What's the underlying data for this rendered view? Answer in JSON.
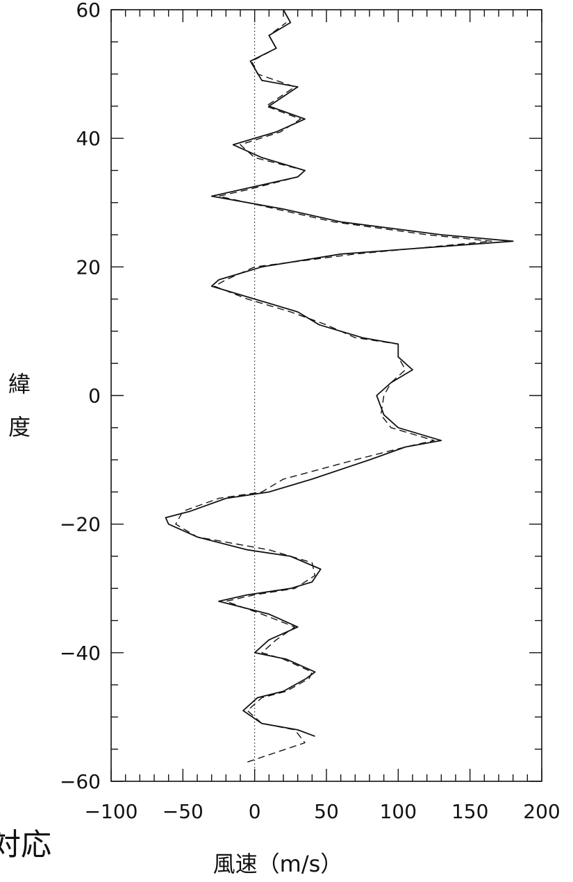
{
  "chart_data": {
    "type": "line",
    "xlabel": "風速（m/s）",
    "ylabel": "緯度",
    "xlim": [
      -100,
      200
    ],
    "ylim": [
      -60,
      60
    ],
    "xticks": [
      -100,
      -50,
      0,
      50,
      100,
      150,
      200
    ],
    "yticks": [
      -60,
      -40,
      -20,
      0,
      20,
      40,
      60
    ],
    "tick_labels_x": [
      "−100",
      "−50",
      "0",
      "50",
      "100",
      "150",
      "200"
    ],
    "tick_labels_y": [
      "−60",
      "−40",
      "−20",
      "0",
      "20",
      "40",
      "60"
    ],
    "zero_reference_line": true,
    "grid": false,
    "series": [
      {
        "style": "solid",
        "points": [
          [
            42,
            -53
          ],
          [
            30,
            -52
          ],
          [
            5,
            -51
          ],
          [
            -8,
            -49
          ],
          [
            2,
            -47
          ],
          [
            20,
            -46
          ],
          [
            36,
            -44
          ],
          [
            42,
            -43
          ],
          [
            22,
            -41
          ],
          [
            0,
            -40
          ],
          [
            10,
            -38
          ],
          [
            30,
            -36
          ],
          [
            10,
            -34
          ],
          [
            -25,
            -32
          ],
          [
            -5,
            -31
          ],
          [
            25,
            -30
          ],
          [
            40,
            -29
          ],
          [
            46,
            -27
          ],
          [
            25,
            -25
          ],
          [
            -5,
            -24
          ],
          [
            -40,
            -22
          ],
          [
            -60,
            -20
          ],
          [
            -62,
            -19
          ],
          [
            -45,
            -18
          ],
          [
            -20,
            -16
          ],
          [
            10,
            -15
          ],
          [
            40,
            -13
          ],
          [
            80,
            -10
          ],
          [
            105,
            -8
          ],
          [
            130,
            -7
          ],
          [
            100,
            -5
          ],
          [
            90,
            -3
          ],
          [
            85,
            0
          ],
          [
            95,
            2
          ],
          [
            110,
            4
          ],
          [
            100,
            6
          ],
          [
            100,
            8
          ],
          [
            75,
            9
          ],
          [
            45,
            11
          ],
          [
            30,
            13
          ],
          [
            0,
            15
          ],
          [
            -30,
            17
          ],
          [
            -25,
            18
          ],
          [
            -10,
            19
          ],
          [
            5,
            20
          ],
          [
            60,
            22
          ],
          [
            180,
            24
          ],
          [
            130,
            25
          ],
          [
            60,
            27
          ],
          [
            20,
            29
          ],
          [
            -30,
            31
          ],
          [
            -10,
            32
          ],
          [
            30,
            34
          ],
          [
            35,
            35
          ],
          [
            5,
            37
          ],
          [
            -15,
            39
          ],
          [
            15,
            41
          ],
          [
            35,
            43
          ],
          [
            10,
            45
          ],
          [
            30,
            48
          ],
          [
            5,
            49
          ],
          [
            -3,
            52
          ],
          [
            15,
            54
          ],
          [
            10,
            56
          ],
          [
            25,
            58
          ],
          [
            20,
            60
          ]
        ]
      },
      {
        "style": "dashed",
        "points": [
          [
            -5,
            -57
          ],
          [
            35,
            -54
          ],
          [
            28,
            -52
          ],
          [
            5,
            -51
          ],
          [
            -5,
            -49
          ],
          [
            5,
            -47
          ],
          [
            22,
            -46
          ],
          [
            38,
            -44
          ],
          [
            40,
            -43
          ],
          [
            20,
            -41
          ],
          [
            5,
            -40
          ],
          [
            15,
            -38
          ],
          [
            28,
            -36
          ],
          [
            5,
            -34
          ],
          [
            -20,
            -32
          ],
          [
            0,
            -31
          ],
          [
            28,
            -30
          ],
          [
            42,
            -28
          ],
          [
            40,
            -26
          ],
          [
            10,
            -24
          ],
          [
            -40,
            -22
          ],
          [
            -55,
            -20
          ],
          [
            -50,
            -18
          ],
          [
            -25,
            -16
          ],
          [
            5,
            -15
          ],
          [
            20,
            -13
          ],
          [
            70,
            -10
          ],
          [
            105,
            -8
          ],
          [
            125,
            -7
          ],
          [
            95,
            -5
          ],
          [
            88,
            -3
          ],
          [
            90,
            0
          ],
          [
            95,
            2
          ],
          [
            105,
            4
          ],
          [
            100,
            6
          ],
          [
            100,
            8
          ],
          [
            70,
            9
          ],
          [
            50,
            11
          ],
          [
            25,
            13
          ],
          [
            -5,
            15
          ],
          [
            -28,
            17
          ],
          [
            -20,
            18
          ],
          [
            0,
            20
          ],
          [
            70,
            22
          ],
          [
            165,
            24
          ],
          [
            120,
            25
          ],
          [
            55,
            27
          ],
          [
            15,
            29
          ],
          [
            -25,
            31
          ],
          [
            -5,
            32
          ],
          [
            30,
            34
          ],
          [
            35,
            35
          ],
          [
            0,
            37
          ],
          [
            -10,
            39
          ],
          [
            18,
            41
          ],
          [
            32,
            43
          ],
          [
            8,
            45
          ],
          [
            28,
            48
          ],
          [
            2,
            50
          ],
          [
            -2,
            52
          ],
          [
            15,
            54
          ],
          [
            10,
            56
          ],
          [
            22,
            58
          ]
        ]
      }
    ]
  },
  "side_text": {
    "ylabel_line1": "緯",
    "ylabel_line2": "度",
    "bottom_left_fragment": "対応"
  }
}
